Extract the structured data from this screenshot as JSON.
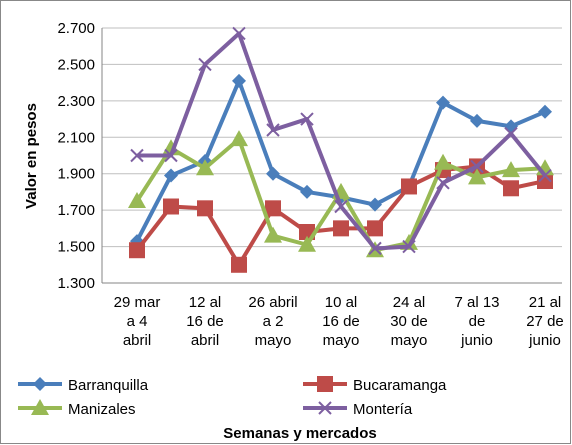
{
  "chart_data": {
    "type": "line",
    "y_label": "Valor en pesos",
    "x_label": "Semanas y mercados",
    "categories": [
      "29 mar\na 4\nabril",
      null,
      "12 al\n16 de\nabril",
      null,
      "26 abril\na 2\nmayo",
      null,
      "10 al\n16 de\nmayo",
      null,
      "24 al\n30 de\nmayo",
      null,
      "7 al 13\nde\njunio",
      null,
      "21 al\n27 de\njunio"
    ],
    "series": [
      {
        "name": "Barranquilla",
        "color": "#4a7ebb",
        "marker": "diamond",
        "values": [
          1530,
          1890,
          1970,
          2410,
          1900,
          1800,
          1770,
          1730,
          1830,
          2290,
          2190,
          2160,
          2240
        ]
      },
      {
        "name": "Bucaramanga",
        "color": "#be4b48",
        "marker": "square",
        "values": [
          1480,
          1720,
          1710,
          1400,
          1710,
          1580,
          1600,
          1600,
          1830,
          1920,
          1940,
          1820,
          1860
        ]
      },
      {
        "name": "Manizales",
        "color": "#98b954",
        "marker": "triangle",
        "values": [
          1750,
          2040,
          1930,
          2090,
          1560,
          1510,
          1800,
          1480,
          1520,
          1960,
          1880,
          1920,
          1930
        ]
      },
      {
        "name": "Montería",
        "color": "#7d5fa0",
        "marker": "x",
        "values": [
          2000,
          2000,
          2500,
          2670,
          2140,
          2200,
          1720,
          1490,
          1500,
          1850,
          1940,
          2120,
          1890
        ]
      }
    ],
    "ylim": [
      1300,
      2700
    ],
    "yticks": [
      {
        "value": 1300,
        "label": "1.300"
      },
      {
        "value": 1500,
        "label": "1.500"
      },
      {
        "value": 1700,
        "label": "1.700"
      },
      {
        "value": 1900,
        "label": "1.900"
      },
      {
        "value": 2100,
        "label": "2.100"
      },
      {
        "value": 2300,
        "label": "2.300"
      },
      {
        "value": 2500,
        "label": "2.500"
      },
      {
        "value": 2700,
        "label": "2.700"
      }
    ],
    "grid": true
  }
}
